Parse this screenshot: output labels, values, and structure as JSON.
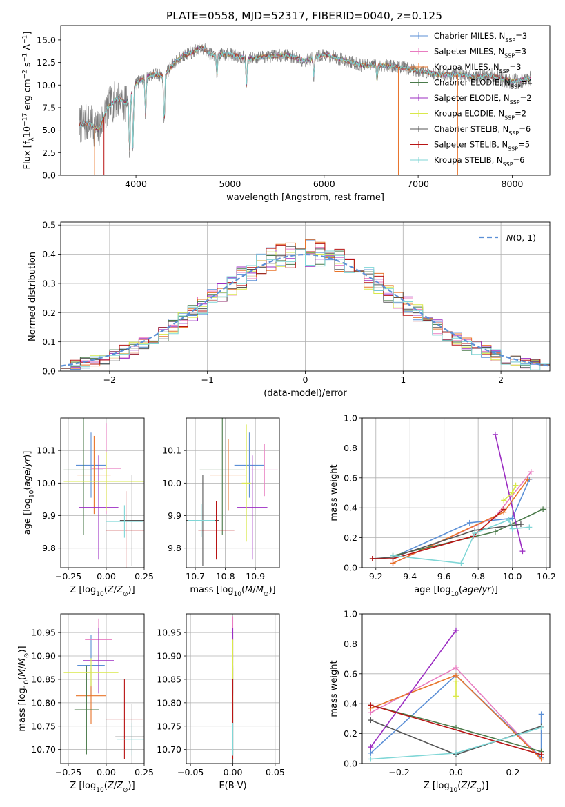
{
  "figure": {
    "title": "PLATE=0558, MJD=52317, FIBERID=0040, z=0.125"
  },
  "legend_models": [
    {
      "base": "Chabrier MILES",
      "nssp": 3,
      "color": "#5b8fd6"
    },
    {
      "base": "Salpeter MILES",
      "nssp": 3,
      "color": "#e87cc0"
    },
    {
      "base": "Kroupa MILES",
      "nssp": 3,
      "color": "#e8742a"
    },
    {
      "base": "Chabrier ELODIE",
      "nssp": 4,
      "color": "#4a7a4a"
    },
    {
      "base": "Salpeter ELODIE",
      "nssp": 2,
      "color": "#9b2cc2"
    },
    {
      "base": "Kroupa ELODIE",
      "nssp": 2,
      "color": "#d9e84a"
    },
    {
      "base": "Chabrier STELIB",
      "nssp": 6,
      "color": "#555555"
    },
    {
      "base": "Salpeter STELIB",
      "nssp": 5,
      "color": "#b81414"
    },
    {
      "base": "Kroupa STELIB",
      "nssp": 6,
      "color": "#7fd6d6"
    }
  ],
  "chart_data": [
    {
      "id": "spectrum",
      "type": "line",
      "xlabel": "wavelength [Angstrom, rest frame]",
      "ylabel": "Flux [f_λ10^-17 erg cm^-2 s^-1 A^-1]",
      "xlim": [
        3200,
        8400
      ],
      "ylim": [
        0,
        16.6
      ],
      "xticks": [
        4000,
        5000,
        6000,
        7000,
        8000
      ],
      "yticks": [
        0.0,
        2.5,
        5.0,
        7.5,
        10.0,
        12.5,
        15.0
      ],
      "grid": false,
      "legend_position": "upper-right",
      "continuum": {
        "x": [
          3400,
          3500,
          3600,
          3700,
          3800,
          3900,
          4000,
          4100,
          4200,
          4300,
          4400,
          4500,
          4600,
          4700,
          4800,
          5000,
          5200,
          5400,
          5600,
          5800,
          6000,
          6200,
          6400,
          6600,
          6800,
          7000,
          7200,
          7400,
          7600,
          7800,
          8000,
          8200
        ],
        "y": [
          5.6,
          5.8,
          5.0,
          7.5,
          8.5,
          8.0,
          10.2,
          10.8,
          11.2,
          11.0,
          12.4,
          13.3,
          13.6,
          14.2,
          13.4,
          13.4,
          12.9,
          13.2,
          13.3,
          12.7,
          13.4,
          12.8,
          12.2,
          12.2,
          12.0,
          11.6,
          11.2,
          11.2,
          10.9,
          11.0,
          10.4,
          10.7
        ]
      },
      "absorption_features": [
        {
          "x": 3933,
          "y": 2.0
        },
        {
          "x": 3968,
          "y": 3.0
        },
        {
          "x": 4102,
          "y": 6.5
        },
        {
          "x": 4300,
          "y": 5.5
        },
        {
          "x": 4861,
          "y": 11.0
        },
        {
          "x": 5175,
          "y": 10.0
        },
        {
          "x": 5890,
          "y": 11.0
        },
        {
          "x": 6563,
          "y": 10.5
        }
      ]
    },
    {
      "id": "residual_histogram",
      "type": "step",
      "xlabel": "(data-model)/error",
      "ylabel": "Normed distribution",
      "xlim": [
        -2.5,
        2.5
      ],
      "ylim": [
        0,
        0.51
      ],
      "xticks": [
        -2,
        -1,
        0,
        1,
        2
      ],
      "yticks": [
        0.0,
        0.1,
        0.2,
        0.3,
        0.4,
        0.5
      ],
      "grid": true,
      "legend_position": "upper-right",
      "legend_label": "N(0,1)",
      "reference": {
        "name": "N(0,1)",
        "mean": 0,
        "sigma": 1,
        "style": "dashed",
        "color": "#5b8fd6"
      },
      "bin_width": 0.1,
      "bin_start": -2.5,
      "base_values": [
        0.018,
        0.022,
        0.028,
        0.035,
        0.044,
        0.054,
        0.066,
        0.079,
        0.093,
        0.11,
        0.13,
        0.151,
        0.174,
        0.197,
        0.222,
        0.246,
        0.271,
        0.296,
        0.32,
        0.341,
        0.361,
        0.378,
        0.391,
        0.4,
        0.405,
        0.405,
        0.4,
        0.391,
        0.378,
        0.361,
        0.341,
        0.32,
        0.296,
        0.271,
        0.246,
        0.222,
        0.197,
        0.174,
        0.151,
        0.13,
        0.11,
        0.093,
        0.079,
        0.066,
        0.054,
        0.044,
        0.035,
        0.028,
        0.022,
        0.018
      ],
      "noise_amplitude": 0.045
    },
    {
      "id": "age_vs_Z",
      "type": "errorbar",
      "xlabel": "Z [log10(Z/Z⊙)]",
      "ylabel": "age [log10(age/yr)]",
      "xlim": [
        -0.3,
        0.25
      ],
      "ylim": [
        9.74,
        10.2
      ],
      "xticks": [
        -0.25,
        0.0,
        0.25
      ],
      "yticks": [
        9.8,
        9.9,
        10.0,
        10.1
      ],
      "grid": true,
      "points": [
        {
          "x": -0.1,
          "y": 10.055,
          "xerr": 0.1,
          "yerr": 0.1,
          "color": "#5b8fd6"
        },
        {
          "x": 0.0,
          "y": 10.045,
          "xerr": 0.1,
          "yerr": 0.14,
          "color": "#e87cc0"
        },
        {
          "x": -0.08,
          "y": 10.025,
          "xerr": 0.11,
          "yerr": 0.12,
          "color": "#e8742a"
        },
        {
          "x": -0.15,
          "y": 10.04,
          "xerr": 0.13,
          "yerr": 0.2,
          "color": "#4a7a4a"
        },
        {
          "x": -0.05,
          "y": 9.925,
          "xerr": 0.13,
          "yerr": 0.16,
          "color": "#9b2cc2"
        },
        {
          "x": 0.0,
          "y": 10.005,
          "xerr": 0.28,
          "yerr": 0.09,
          "color": "#d9e84a"
        },
        {
          "x": 0.17,
          "y": 9.885,
          "xerr": 0.08,
          "yerr": 0.14,
          "color": "#555555"
        },
        {
          "x": 0.13,
          "y": 9.855,
          "xerr": 0.13,
          "yerr": 0.12,
          "color": "#b81414"
        },
        {
          "x": 0.12,
          "y": 9.882,
          "xerr": 0.12,
          "yerr": 0.05,
          "color": "#7fd6d6"
        }
      ]
    },
    {
      "id": "age_vs_mass",
      "type": "errorbar",
      "xlabel": "mass [log10(M/M⊙)]",
      "ylabel": "",
      "xlim": [
        10.67,
        10.98
      ],
      "ylim": [
        9.74,
        10.2
      ],
      "xticks": [
        10.7,
        10.8,
        10.9
      ],
      "yticks": [
        9.8,
        9.9,
        10.0,
        10.1
      ],
      "grid": true,
      "points": [
        {
          "x": 10.88,
          "y": 10.055,
          "xerr": 0.05,
          "yerr": 0.1,
          "color": "#5b8fd6"
        },
        {
          "x": 10.93,
          "y": 10.04,
          "xerr": 0.045,
          "yerr": 0.08,
          "color": "#e87cc0"
        },
        {
          "x": 10.81,
          "y": 10.025,
          "xerr": 0.06,
          "yerr": 0.11,
          "color": "#e8742a"
        },
        {
          "x": 10.79,
          "y": 10.04,
          "xerr": 0.075,
          "yerr": 0.2,
          "color": "#4a7a4a"
        },
        {
          "x": 10.89,
          "y": 9.925,
          "xerr": 0.05,
          "yerr": 0.16,
          "color": "#9b2cc2"
        },
        {
          "x": 10.87,
          "y": 10.0,
          "xerr": 0.015,
          "yerr": 0.18,
          "color": "#d9e84a"
        },
        {
          "x": 10.725,
          "y": 9.885,
          "xerr": 0.055,
          "yerr": 0.14,
          "color": "#555555"
        },
        {
          "x": 10.77,
          "y": 9.855,
          "xerr": 0.06,
          "yerr": 0.09,
          "color": "#b81414"
        },
        {
          "x": 10.72,
          "y": 9.885,
          "xerr": 0.045,
          "yerr": 0.05,
          "color": "#7fd6d6"
        }
      ]
    },
    {
      "id": "mass_weight_vs_age",
      "type": "line",
      "xlabel": "age [log10(age/yr)]",
      "ylabel": "mass weight",
      "xlim": [
        9.12,
        10.22
      ],
      "ylim": [
        0,
        1.0
      ],
      "xticks": [
        9.2,
        9.4,
        9.6,
        9.8,
        10.0,
        10.2
      ],
      "yticks": [
        0.0,
        0.2,
        0.4,
        0.6,
        0.8,
        1.0
      ],
      "grid": true,
      "series": [
        {
          "x": [
            9.3,
            9.75,
            10.0,
            10.1
          ],
          "y": [
            0.07,
            0.3,
            0.33,
            0.59
          ],
          "color": "#5b8fd6"
        },
        {
          "x": [
            9.3,
            9.9,
            10.11
          ],
          "y": [
            0.03,
            0.34,
            0.64
          ],
          "color": "#e87cc0"
        },
        {
          "x": [
            9.3,
            9.95,
            10.09
          ],
          "y": [
            0.03,
            0.37,
            0.59
          ],
          "color": "#e8742a"
        },
        {
          "x": [
            9.3,
            9.9,
            10.18
          ],
          "y": [
            0.08,
            0.24,
            0.39
          ],
          "color": "#4a7a4a"
        },
        {
          "x": [
            9.9,
            10.06
          ],
          "y": [
            0.89,
            0.11
          ],
          "color": "#9b2cc2"
        },
        {
          "x": [
            9.95,
            10.0,
            10.02
          ],
          "y": [
            0.45,
            0.5,
            0.55
          ],
          "color": "#d9e84a"
        },
        {
          "x": [
            9.18,
            9.3,
            9.78,
            10.05
          ],
          "y": [
            0.06,
            0.07,
            0.25,
            0.29
          ],
          "color": "#555555"
        },
        {
          "x": [
            9.18,
            9.3,
            9.77,
            9.95
          ],
          "y": [
            0.06,
            0.06,
            0.21,
            0.39
          ],
          "color": "#b81414"
        },
        {
          "x": [
            9.3,
            9.7,
            9.78,
            9.98,
            10.0,
            10.1
          ],
          "y": [
            0.08,
            0.03,
            0.23,
            0.32,
            0.26,
            0.27
          ],
          "color": "#7fd6d6"
        }
      ]
    },
    {
      "id": "mass_vs_Z",
      "type": "errorbar",
      "xlabel": "Z [log10(Z/Z⊙)]",
      "ylabel": "mass [log10(M/M⊙)]",
      "xlim": [
        -0.3,
        0.25
      ],
      "ylim": [
        10.67,
        10.99
      ],
      "xticks": [
        -0.25,
        0.0,
        0.25
      ],
      "yticks": [
        10.7,
        10.75,
        10.8,
        10.85,
        10.9,
        10.95
      ],
      "grid": true,
      "points": [
        {
          "x": -0.1,
          "y": 10.88,
          "xerr": 0.09,
          "yerr": 0.065,
          "color": "#5b8fd6"
        },
        {
          "x": -0.05,
          "y": 10.935,
          "xerr": 0.09,
          "yerr": 0.045,
          "color": "#e87cc0"
        },
        {
          "x": -0.1,
          "y": 10.815,
          "xerr": 0.1,
          "yerr": 0.06,
          "color": "#e8742a"
        },
        {
          "x": -0.13,
          "y": 10.785,
          "xerr": 0.08,
          "yerr": 0.095,
          "color": "#4a7a4a"
        },
        {
          "x": -0.05,
          "y": 10.89,
          "xerr": 0.1,
          "yerr": 0.07,
          "color": "#9b2cc2"
        },
        {
          "x": -0.1,
          "y": 10.865,
          "xerr": 0.18,
          "yerr": 0.03,
          "color": "#d9e84a"
        },
        {
          "x": 0.17,
          "y": 10.727,
          "xerr": 0.11,
          "yerr": 0.07,
          "color": "#555555"
        },
        {
          "x": 0.12,
          "y": 10.765,
          "xerr": 0.12,
          "yerr": 0.085,
          "color": "#b81414"
        },
        {
          "x": 0.17,
          "y": 10.722,
          "xerr": 0.1,
          "yerr": 0.035,
          "color": "#7fd6d6"
        }
      ]
    },
    {
      "id": "mass_vs_EBV",
      "type": "errorbar",
      "xlabel": "E(B-V)",
      "ylabel": "",
      "xlim": [
        -0.055,
        0.055
      ],
      "ylim": [
        10.67,
        10.99
      ],
      "xticks": [
        -0.05,
        0.0,
        0.05
      ],
      "yticks": [
        10.7,
        10.75,
        10.8,
        10.85,
        10.9,
        10.95
      ],
      "grid": true,
      "points": [
        {
          "x": 0.0,
          "y": 10.88,
          "xerr": 0,
          "yerr": 0.065,
          "color": "#5b8fd6"
        },
        {
          "x": 0.0,
          "y": 10.935,
          "xerr": 0,
          "yerr": 0.05,
          "color": "#e87cc0"
        },
        {
          "x": 0.0,
          "y": 10.815,
          "xerr": 0,
          "yerr": 0.06,
          "color": "#e8742a"
        },
        {
          "x": 0.0,
          "y": 10.785,
          "xerr": 0,
          "yerr": 0.095,
          "color": "#4a7a4a"
        },
        {
          "x": 0.0,
          "y": 10.89,
          "xerr": 0,
          "yerr": 0.07,
          "color": "#9b2cc2"
        },
        {
          "x": 0.0,
          "y": 10.865,
          "xerr": 0,
          "yerr": 0.07,
          "color": "#d9e84a"
        },
        {
          "x": 0.0,
          "y": 10.727,
          "xerr": 0,
          "yerr": 0.07,
          "color": "#555555"
        },
        {
          "x": 0.0,
          "y": 10.765,
          "xerr": 0,
          "yerr": 0.085,
          "color": "#b81414"
        },
        {
          "x": 0.0,
          "y": 10.722,
          "xerr": 0,
          "yerr": 0.035,
          "color": "#7fd6d6"
        }
      ]
    },
    {
      "id": "mass_weight_vs_Z",
      "type": "line",
      "xlabel": "Z [log10(Z/Z⊙)]",
      "ylabel": "mass weight",
      "xlim": [
        -0.33,
        0.33
      ],
      "ylim": [
        0,
        1.0
      ],
      "xticks": [
        -0.2,
        0.0,
        0.2
      ],
      "yticks": [
        0.0,
        0.2,
        0.4,
        0.6,
        0.8,
        1.0
      ],
      "grid": true,
      "series": [
        {
          "x": [
            -0.3,
            0.0,
            0.3,
            0.3
          ],
          "y": [
            0.07,
            0.59,
            0.04,
            0.33
          ],
          "color": "#5b8fd6"
        },
        {
          "x": [
            -0.3,
            0.0,
            0.3
          ],
          "y": [
            0.34,
            0.64,
            0.03
          ],
          "color": "#e87cc0"
        },
        {
          "x": [
            -0.3,
            0.0,
            0.3
          ],
          "y": [
            0.37,
            0.59,
            0.03
          ],
          "color": "#e8742a"
        },
        {
          "x": [
            -0.3,
            0.0,
            0.3
          ],
          "y": [
            0.39,
            0.24,
            0.08
          ],
          "color": "#4a7a4a"
        },
        {
          "x": [
            -0.3,
            0.0
          ],
          "y": [
            0.11,
            0.89
          ],
          "color": "#9b2cc2"
        },
        {
          "x": [
            0.0,
            0.0
          ],
          "y": [
            0.45,
            0.55
          ],
          "color": "#d9e84a"
        },
        {
          "x": [
            -0.3,
            0.0,
            0.3
          ],
          "y": [
            0.29,
            0.06,
            0.25
          ],
          "color": "#555555"
        },
        {
          "x": [
            -0.3,
            0.3
          ],
          "y": [
            0.39,
            0.06
          ],
          "color": "#b81414"
        },
        {
          "x": [
            -0.3,
            0.0,
            0.3
          ],
          "y": [
            0.03,
            0.07,
            0.24
          ],
          "color": "#7fd6d6"
        }
      ]
    }
  ]
}
